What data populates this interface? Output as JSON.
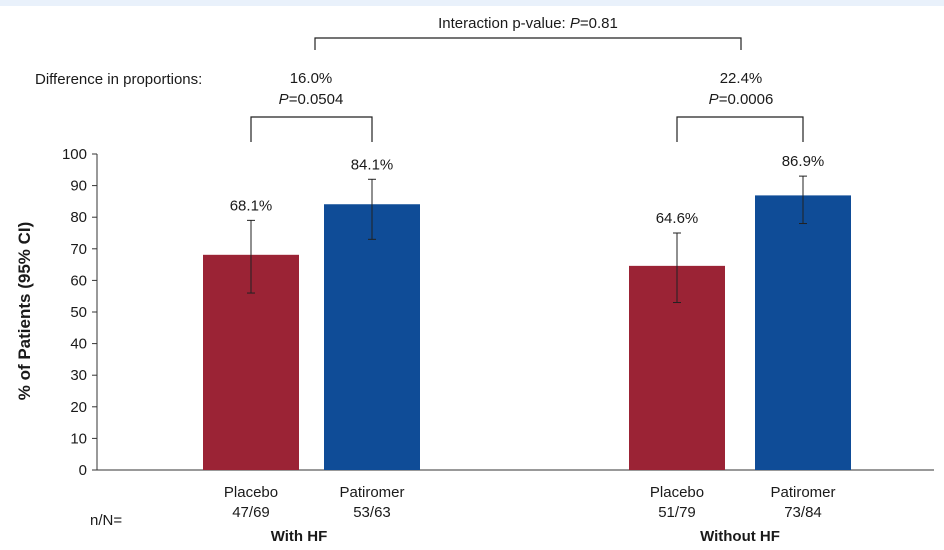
{
  "chart_data": {
    "type": "bar",
    "ylabel": "% of Patients (95% CI)",
    "ylim": [
      0,
      100
    ],
    "yticks": [
      0,
      10,
      20,
      30,
      40,
      50,
      60,
      70,
      80,
      90,
      100
    ],
    "n_label": "n/N=",
    "groups": [
      {
        "name": "With HF",
        "bars": [
          {
            "name": "Placebo",
            "value": 68.1,
            "label": "68.1%",
            "ci": [
              56,
              79
            ],
            "n": "47/69",
            "color": "#9b2335"
          },
          {
            "name": "Patiromer",
            "value": 84.1,
            "label": "84.1%",
            "ci": [
              73,
              92
            ],
            "n": "53/63",
            "color": "#0f4c97"
          }
        ],
        "difference": "16.0%",
        "p_prefix": "P",
        "p_value": "=0.0504"
      },
      {
        "name": "Without HF",
        "bars": [
          {
            "name": "Placebo",
            "value": 64.6,
            "label": "64.6%",
            "ci": [
              53,
              75
            ],
            "n": "51/79",
            "color": "#9b2335"
          },
          {
            "name": "Patiromer",
            "value": 86.9,
            "label": "86.9%",
            "ci": [
              78,
              93
            ],
            "n": "73/84",
            "color": "#0f4c97"
          }
        ],
        "difference": "22.4%",
        "p_prefix": "P",
        "p_value": "=0.0006"
      }
    ],
    "difference_label": "Difference in proportions:",
    "interaction": {
      "text": "Interaction p-value: ",
      "p_prefix": "P",
      "p_value": "=0.81"
    }
  }
}
